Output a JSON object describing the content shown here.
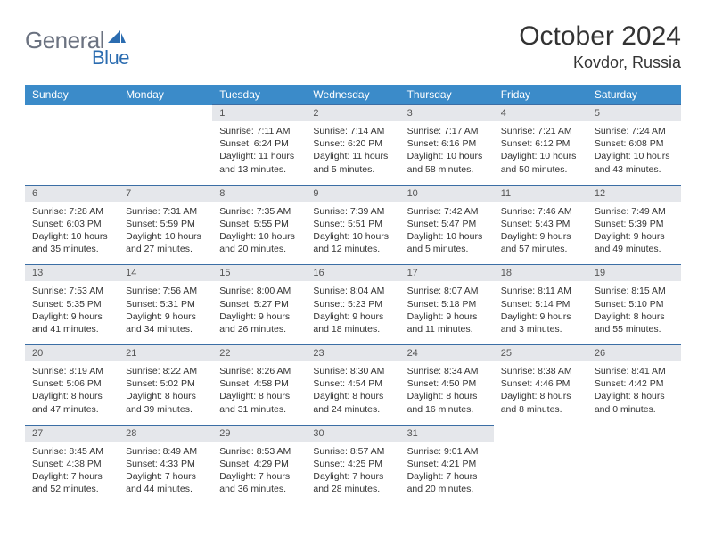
{
  "brand": {
    "part1": "General",
    "part2": "Blue"
  },
  "title": "October 2024",
  "location": "Kovdor, Russia",
  "colors": {
    "header_bg": "#3b8bc9",
    "header_text": "#ffffff",
    "daynum_bg": "#e5e7eb",
    "rule": "#3b6ea5",
    "brand_gray": "#6b7280",
    "brand_blue": "#2b6cb0"
  },
  "dow": [
    "Sunday",
    "Monday",
    "Tuesday",
    "Wednesday",
    "Thursday",
    "Friday",
    "Saturday"
  ],
  "weeks": [
    {
      "nums": [
        "",
        "",
        "1",
        "2",
        "3",
        "4",
        "5"
      ],
      "cells": [
        null,
        null,
        {
          "sr": "Sunrise: 7:11 AM",
          "ss": "Sunset: 6:24 PM",
          "dl": "Daylight: 11 hours and 13 minutes."
        },
        {
          "sr": "Sunrise: 7:14 AM",
          "ss": "Sunset: 6:20 PM",
          "dl": "Daylight: 11 hours and 5 minutes."
        },
        {
          "sr": "Sunrise: 7:17 AM",
          "ss": "Sunset: 6:16 PM",
          "dl": "Daylight: 10 hours and 58 minutes."
        },
        {
          "sr": "Sunrise: 7:21 AM",
          "ss": "Sunset: 6:12 PM",
          "dl": "Daylight: 10 hours and 50 minutes."
        },
        {
          "sr": "Sunrise: 7:24 AM",
          "ss": "Sunset: 6:08 PM",
          "dl": "Daylight: 10 hours and 43 minutes."
        }
      ]
    },
    {
      "nums": [
        "6",
        "7",
        "8",
        "9",
        "10",
        "11",
        "12"
      ],
      "cells": [
        {
          "sr": "Sunrise: 7:28 AM",
          "ss": "Sunset: 6:03 PM",
          "dl": "Daylight: 10 hours and 35 minutes."
        },
        {
          "sr": "Sunrise: 7:31 AM",
          "ss": "Sunset: 5:59 PM",
          "dl": "Daylight: 10 hours and 27 minutes."
        },
        {
          "sr": "Sunrise: 7:35 AM",
          "ss": "Sunset: 5:55 PM",
          "dl": "Daylight: 10 hours and 20 minutes."
        },
        {
          "sr": "Sunrise: 7:39 AM",
          "ss": "Sunset: 5:51 PM",
          "dl": "Daylight: 10 hours and 12 minutes."
        },
        {
          "sr": "Sunrise: 7:42 AM",
          "ss": "Sunset: 5:47 PM",
          "dl": "Daylight: 10 hours and 5 minutes."
        },
        {
          "sr": "Sunrise: 7:46 AM",
          "ss": "Sunset: 5:43 PM",
          "dl": "Daylight: 9 hours and 57 minutes."
        },
        {
          "sr": "Sunrise: 7:49 AM",
          "ss": "Sunset: 5:39 PM",
          "dl": "Daylight: 9 hours and 49 minutes."
        }
      ]
    },
    {
      "nums": [
        "13",
        "14",
        "15",
        "16",
        "17",
        "18",
        "19"
      ],
      "cells": [
        {
          "sr": "Sunrise: 7:53 AM",
          "ss": "Sunset: 5:35 PM",
          "dl": "Daylight: 9 hours and 41 minutes."
        },
        {
          "sr": "Sunrise: 7:56 AM",
          "ss": "Sunset: 5:31 PM",
          "dl": "Daylight: 9 hours and 34 minutes."
        },
        {
          "sr": "Sunrise: 8:00 AM",
          "ss": "Sunset: 5:27 PM",
          "dl": "Daylight: 9 hours and 26 minutes."
        },
        {
          "sr": "Sunrise: 8:04 AM",
          "ss": "Sunset: 5:23 PM",
          "dl": "Daylight: 9 hours and 18 minutes."
        },
        {
          "sr": "Sunrise: 8:07 AM",
          "ss": "Sunset: 5:18 PM",
          "dl": "Daylight: 9 hours and 11 minutes."
        },
        {
          "sr": "Sunrise: 8:11 AM",
          "ss": "Sunset: 5:14 PM",
          "dl": "Daylight: 9 hours and 3 minutes."
        },
        {
          "sr": "Sunrise: 8:15 AM",
          "ss": "Sunset: 5:10 PM",
          "dl": "Daylight: 8 hours and 55 minutes."
        }
      ]
    },
    {
      "nums": [
        "20",
        "21",
        "22",
        "23",
        "24",
        "25",
        "26"
      ],
      "cells": [
        {
          "sr": "Sunrise: 8:19 AM",
          "ss": "Sunset: 5:06 PM",
          "dl": "Daylight: 8 hours and 47 minutes."
        },
        {
          "sr": "Sunrise: 8:22 AM",
          "ss": "Sunset: 5:02 PM",
          "dl": "Daylight: 8 hours and 39 minutes."
        },
        {
          "sr": "Sunrise: 8:26 AM",
          "ss": "Sunset: 4:58 PM",
          "dl": "Daylight: 8 hours and 31 minutes."
        },
        {
          "sr": "Sunrise: 8:30 AM",
          "ss": "Sunset: 4:54 PM",
          "dl": "Daylight: 8 hours and 24 minutes."
        },
        {
          "sr": "Sunrise: 8:34 AM",
          "ss": "Sunset: 4:50 PM",
          "dl": "Daylight: 8 hours and 16 minutes."
        },
        {
          "sr": "Sunrise: 8:38 AM",
          "ss": "Sunset: 4:46 PM",
          "dl": "Daylight: 8 hours and 8 minutes."
        },
        {
          "sr": "Sunrise: 8:41 AM",
          "ss": "Sunset: 4:42 PM",
          "dl": "Daylight: 8 hours and 0 minutes."
        }
      ]
    },
    {
      "nums": [
        "27",
        "28",
        "29",
        "30",
        "31",
        "",
        ""
      ],
      "cells": [
        {
          "sr": "Sunrise: 8:45 AM",
          "ss": "Sunset: 4:38 PM",
          "dl": "Daylight: 7 hours and 52 minutes."
        },
        {
          "sr": "Sunrise: 8:49 AM",
          "ss": "Sunset: 4:33 PM",
          "dl": "Daylight: 7 hours and 44 minutes."
        },
        {
          "sr": "Sunrise: 8:53 AM",
          "ss": "Sunset: 4:29 PM",
          "dl": "Daylight: 7 hours and 36 minutes."
        },
        {
          "sr": "Sunrise: 8:57 AM",
          "ss": "Sunset: 4:25 PM",
          "dl": "Daylight: 7 hours and 28 minutes."
        },
        {
          "sr": "Sunrise: 9:01 AM",
          "ss": "Sunset: 4:21 PM",
          "dl": "Daylight: 7 hours and 20 minutes."
        },
        null,
        null
      ]
    }
  ]
}
